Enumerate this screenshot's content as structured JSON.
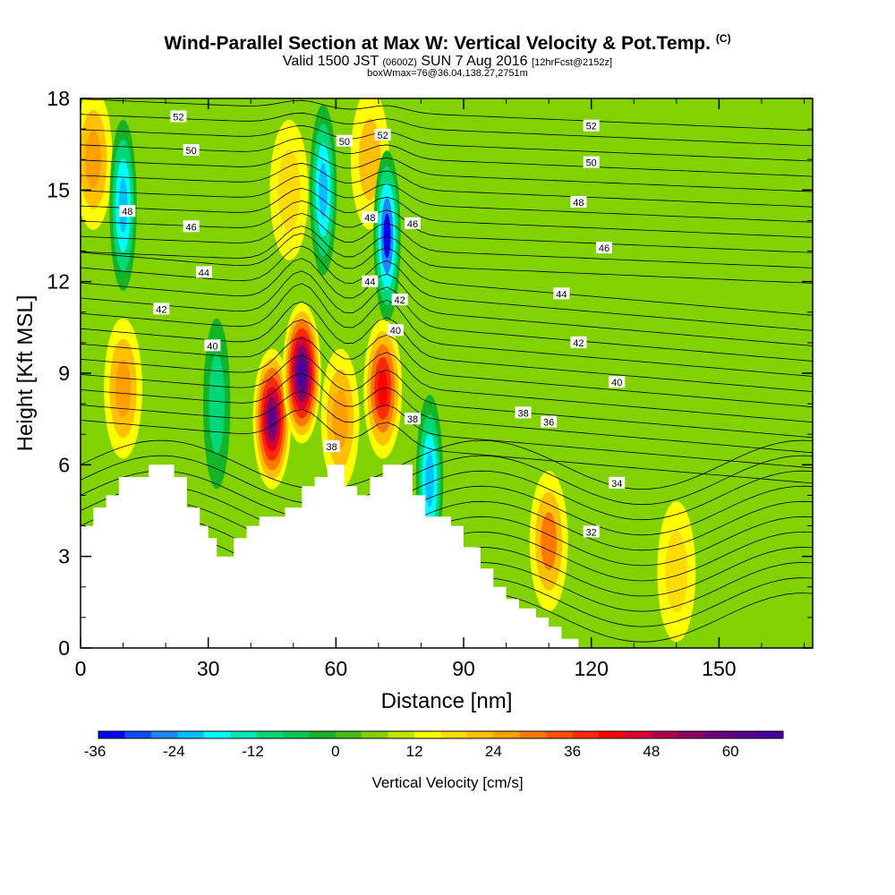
{
  "header": {
    "title": "Wind-Parallel Section at Max W: Vertical Velocity & Pot.Temp.",
    "title_mark": "(C)",
    "valid_prefix": "Valid 1500 JST",
    "valid_utc": "(0600Z)",
    "valid_date": "SUN 7 Aug 2016",
    "forecast": "[12hrFcst@2152z]",
    "box_info": "boxWmax=76@36.04,138.27,2751m"
  },
  "chart_data": {
    "type": "heatmap",
    "xlabel": "Distance [nm]",
    "ylabel": "Height [Kft MSL]",
    "xlim": [
      0,
      172
    ],
    "ylim": [
      0,
      18
    ],
    "x_ticks": [
      0,
      30,
      60,
      90,
      120,
      150
    ],
    "y_ticks": [
      0,
      3,
      6,
      9,
      12,
      15,
      18
    ],
    "colorbar": {
      "label": "Vertical Velocity [cm/s]",
      "min": -36,
      "max": 68,
      "step": 4,
      "tick_labels": [
        -36,
        -24,
        -12,
        0,
        12,
        24,
        36,
        48,
        60
      ],
      "colors": [
        "#0000ff",
        "#0a4cff",
        "#1f85ff",
        "#00c0ff",
        "#00ffff",
        "#00e8b4",
        "#00d878",
        "#00c850",
        "#14b428",
        "#46be14",
        "#82d200",
        "#bee600",
        "#ffff00",
        "#ffdc00",
        "#ffc000",
        "#ffa000",
        "#ff7800",
        "#ff5000",
        "#ff2800",
        "#ff0000",
        "#dc0032",
        "#b4004b",
        "#8c0064",
        "#6e007d",
        "#5a008c",
        "#46009b"
      ]
    },
    "w_maxima": [
      {
        "x": 45,
        "y": 7.5,
        "value": 60
      },
      {
        "x": 52,
        "y": 9.0,
        "value": 68
      },
      {
        "x": 61,
        "y": 7.5,
        "value": 24
      },
      {
        "x": 71,
        "y": 8.5,
        "value": 40
      },
      {
        "x": 110,
        "y": 3.5,
        "value": 28
      },
      {
        "x": 10,
        "y": 8.5,
        "value": 24
      },
      {
        "x": 3,
        "y": 16.0,
        "value": 24
      },
      {
        "x": 68,
        "y": 16.0,
        "value": 20
      },
      {
        "x": 49,
        "y": 15.0,
        "value": 16
      },
      {
        "x": 140,
        "y": 2.5,
        "value": 16
      }
    ],
    "w_minima": [
      {
        "x": 72,
        "y": 13.5,
        "value": -36
      },
      {
        "x": 57,
        "y": 15.0,
        "value": -24
      },
      {
        "x": 10,
        "y": 14.5,
        "value": -24
      },
      {
        "x": 82,
        "y": 5.5,
        "value": -24
      },
      {
        "x": 32,
        "y": 8.0,
        "value": -12
      }
    ],
    "isentrope_labels": [
      {
        "text": "52",
        "x": 23,
        "y": 17.4
      },
      {
        "text": "50",
        "x": 26,
        "y": 16.3
      },
      {
        "text": "48",
        "x": 11,
        "y": 14.3
      },
      {
        "text": "46",
        "x": 26,
        "y": 13.8
      },
      {
        "text": "44",
        "x": 29,
        "y": 12.3
      },
      {
        "text": "42",
        "x": 19,
        "y": 11.1
      },
      {
        "text": "40",
        "x": 31,
        "y": 9.9
      },
      {
        "text": "50",
        "x": 62,
        "y": 16.6
      },
      {
        "text": "52",
        "x": 71,
        "y": 16.8
      },
      {
        "text": "48",
        "x": 68,
        "y": 14.1
      },
      {
        "text": "46",
        "x": 78,
        "y": 13.9
      },
      {
        "text": "44",
        "x": 68,
        "y": 12.0
      },
      {
        "text": "42",
        "x": 75,
        "y": 11.4
      },
      {
        "text": "40",
        "x": 74,
        "y": 10.4
      },
      {
        "text": "38",
        "x": 59,
        "y": 6.6
      },
      {
        "text": "38",
        "x": 78,
        "y": 7.5
      },
      {
        "text": "52",
        "x": 120,
        "y": 17.1
      },
      {
        "text": "50",
        "x": 120,
        "y": 15.9
      },
      {
        "text": "48",
        "x": 117,
        "y": 14.6
      },
      {
        "text": "46",
        "x": 123,
        "y": 13.1
      },
      {
        "text": "44",
        "x": 113,
        "y": 11.6
      },
      {
        "text": "42",
        "x": 117,
        "y": 10.0
      },
      {
        "text": "40",
        "x": 126,
        "y": 8.7
      },
      {
        "text": "38",
        "x": 104,
        "y": 7.7
      },
      {
        "text": "36",
        "x": 110,
        "y": 7.4
      },
      {
        "text": "34",
        "x": 126,
        "y": 5.4
      },
      {
        "text": "32",
        "x": 120,
        "y": 3.8
      }
    ],
    "terrain": [
      [
        0,
        4.0
      ],
      [
        3,
        4.0
      ],
      [
        3,
        4.6
      ],
      [
        6,
        4.6
      ],
      [
        6,
        5.0
      ],
      [
        9,
        5.0
      ],
      [
        9,
        5.6
      ],
      [
        16,
        5.6
      ],
      [
        16,
        6.0
      ],
      [
        22,
        6.0
      ],
      [
        22,
        5.6
      ],
      [
        25,
        5.6
      ],
      [
        25,
        4.6
      ],
      [
        28,
        4.6
      ],
      [
        28,
        4.0
      ],
      [
        30,
        4.0
      ],
      [
        30,
        3.6
      ],
      [
        32,
        3.6
      ],
      [
        32,
        3.0
      ],
      [
        36,
        3.0
      ],
      [
        36,
        3.6
      ],
      [
        39,
        3.6
      ],
      [
        39,
        4.0
      ],
      [
        42,
        4.0
      ],
      [
        42,
        4.3
      ],
      [
        48,
        4.3
      ],
      [
        48,
        4.6
      ],
      [
        52,
        4.6
      ],
      [
        52,
        5.3
      ],
      [
        55,
        5.3
      ],
      [
        55,
        5.6
      ],
      [
        58,
        5.6
      ],
      [
        58,
        6.0
      ],
      [
        62,
        6.0
      ],
      [
        62,
        5.3
      ],
      [
        65,
        5.3
      ],
      [
        65,
        5.0
      ],
      [
        68,
        5.0
      ],
      [
        68,
        5.6
      ],
      [
        71,
        5.6
      ],
      [
        71,
        6.0
      ],
      [
        78,
        6.0
      ],
      [
        78,
        5.0
      ],
      [
        81,
        5.0
      ],
      [
        81,
        4.3
      ],
      [
        87,
        4.3
      ],
      [
        87,
        4.0
      ],
      [
        90,
        4.0
      ],
      [
        90,
        3.3
      ],
      [
        94,
        3.3
      ],
      [
        94,
        2.6
      ],
      [
        97,
        2.6
      ],
      [
        97,
        2.0
      ],
      [
        100,
        2.0
      ],
      [
        100,
        1.6
      ],
      [
        103,
        1.6
      ],
      [
        103,
        1.3
      ],
      [
        107,
        1.3
      ],
      [
        107,
        1.0
      ],
      [
        110,
        1.0
      ],
      [
        110,
        0.7
      ],
      [
        113,
        0.7
      ],
      [
        113,
        0.3
      ],
      [
        117,
        0.3
      ],
      [
        117,
        0.0
      ]
    ]
  }
}
